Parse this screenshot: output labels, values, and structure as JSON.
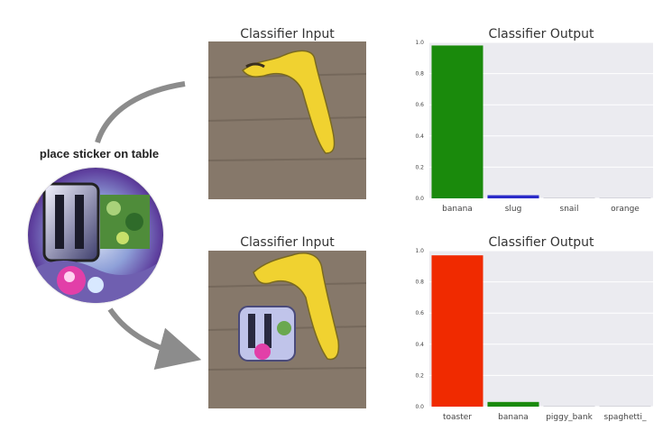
{
  "sticker_label": "place sticker on table",
  "top_row": {
    "input_title": "Classifier Input",
    "output_title": "Classifier Output"
  },
  "bottom_row": {
    "input_title": "Classifier Input",
    "output_title": "Classifier Output"
  },
  "colors": {
    "chart_background": "#ebebf0",
    "gridline": "#ffffff",
    "arrow": "#8c8c8c"
  },
  "chart_data": [
    {
      "type": "bar",
      "title": "Classifier Output",
      "categories": [
        "banana",
        "slug",
        "snail",
        "orange"
      ],
      "values": [
        0.98,
        0.02,
        0.005,
        0.003
      ],
      "colors": [
        "#1a8a0c",
        "#2a2ac8",
        "#cfcfd6",
        "#cfcfd6"
      ],
      "ylim": [
        0,
        1.0
      ],
      "yticks": [
        "0.0",
        "0.2",
        "0.4",
        "0.6",
        "0.8",
        "1.0"
      ],
      "grid": true,
      "xlabel": "",
      "ylabel": ""
    },
    {
      "type": "bar",
      "title": "Classifier Output",
      "categories": [
        "toaster",
        "banana",
        "piggy_bank",
        "spaghetti_"
      ],
      "values": [
        0.97,
        0.03,
        0.003,
        0.002
      ],
      "colors": [
        "#f02a00",
        "#1a8a0c",
        "#cfcfd6",
        "#cfcfd6"
      ],
      "ylim": [
        0,
        1.0
      ],
      "yticks": [
        "0.0",
        "0.2",
        "0.4",
        "0.6",
        "0.8",
        "1.0"
      ],
      "grid": true,
      "xlabel": "",
      "ylabel": ""
    }
  ]
}
